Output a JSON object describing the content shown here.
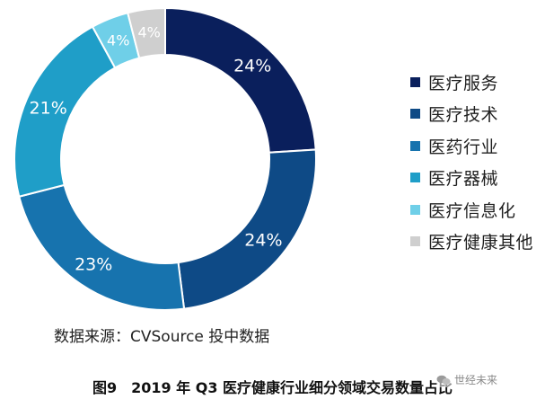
{
  "chart_data": {
    "type": "pie",
    "hole": true,
    "categories": [
      "医疗服务",
      "医疗技术",
      "医药行业",
      "医疗器械",
      "医疗信息化",
      "医疗健康其他"
    ],
    "values": [
      24,
      24,
      23,
      21,
      4,
      4
    ],
    "value_labels": [
      "24%",
      "24%",
      "23%",
      "21%",
      "4%",
      "4%"
    ],
    "colors": [
      "#0a1f5c",
      "#0e4a86",
      "#1773ae",
      "#1f9ec8",
      "#6fcfe8",
      "#cfcfcf"
    ],
    "label_colors": [
      "#ffffff",
      "#ffffff",
      "#ffffff",
      "#ffffff",
      "#ffffff",
      "#ffffff"
    ],
    "start": "top",
    "direction": "clockwise",
    "legend_position": "right"
  },
  "legend": {
    "items": [
      {
        "label": "医疗服务",
        "color": "#0a1f5c"
      },
      {
        "label": "医疗技术",
        "color": "#0e4a86"
      },
      {
        "label": "医药行业",
        "color": "#1773ae"
      },
      {
        "label": "医疗器械",
        "color": "#1f9ec8"
      },
      {
        "label": "医疗信息化",
        "color": "#6fcfe8"
      },
      {
        "label": "医疗健康其他",
        "color": "#cfcfcf"
      }
    ]
  },
  "source_text": "数据来源：CVSource 投中数据",
  "caption": "图9　2019 年 Q3 医疗健康行业细分领域交易数量占比",
  "watermark": {
    "text": "世经未来",
    "icon": "wechat-icon"
  }
}
